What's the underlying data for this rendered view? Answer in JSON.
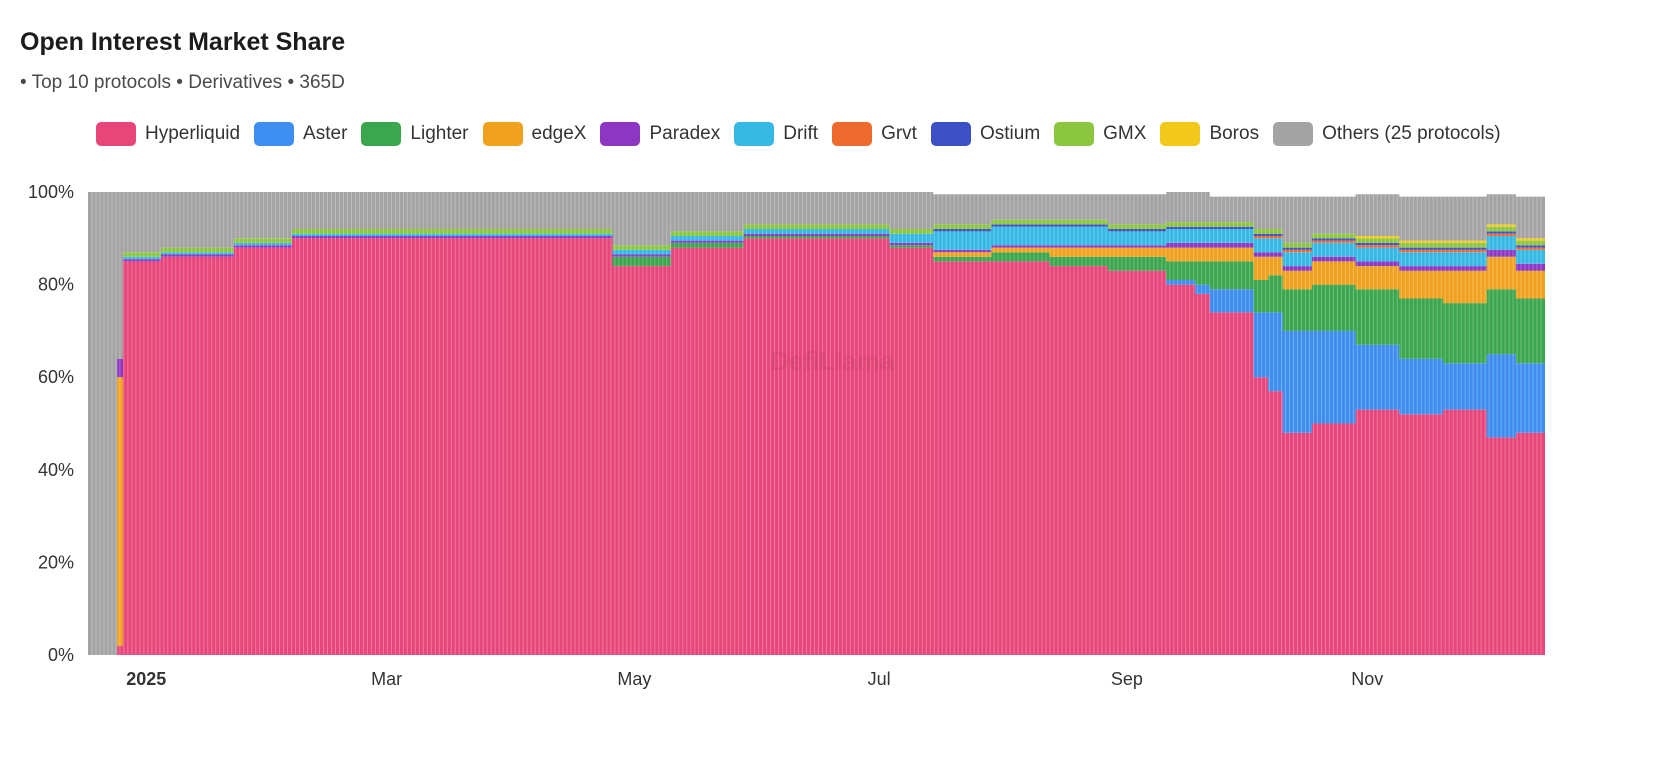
{
  "header": {
    "title": "Open Interest Market Share",
    "subtitle": "• Top 10 protocols • Derivatives • 365D"
  },
  "watermark": "DefiLlama",
  "chart_data": {
    "type": "area",
    "stacked_percent": true,
    "title": "Open Interest Market Share",
    "ylabel": "",
    "xlabel": "",
    "ylim": [
      0,
      100
    ],
    "y_ticks": [
      "0%",
      "20%",
      "40%",
      "60%",
      "80%",
      "100%"
    ],
    "x_tick_labels": [
      {
        "label": "2025",
        "t": 0.04,
        "bold": true
      },
      {
        "label": "Mar",
        "t": 0.205
      },
      {
        "label": "May",
        "t": 0.375
      },
      {
        "label": "Jul",
        "t": 0.543
      },
      {
        "label": "Sep",
        "t": 0.713
      },
      {
        "label": "Nov",
        "t": 0.878
      }
    ],
    "x_timeline": [
      0.0,
      0.02,
      0.024,
      0.05,
      0.1,
      0.14,
      0.2,
      0.3,
      0.35,
      0.36,
      0.38,
      0.4,
      0.45,
      0.52,
      0.55,
      0.58,
      0.62,
      0.66,
      0.7,
      0.74,
      0.76,
      0.77,
      0.8,
      0.81,
      0.82,
      0.84,
      0.87,
      0.9,
      0.93,
      0.96,
      0.98,
      1.0
    ],
    "series": [
      {
        "name": "Hyperliquid",
        "color": "#e8457a",
        "values": [
          0,
          2,
          85,
          86,
          88,
          90,
          90,
          90,
          90,
          84,
          84,
          88,
          90,
          90,
          88,
          85,
          85,
          84,
          83,
          80,
          78,
          74,
          60,
          57,
          48,
          50,
          53,
          52,
          53,
          47,
          48,
          50
        ]
      },
      {
        "name": "Aster",
        "color": "#3d8ef0",
        "values": [
          0,
          0,
          0,
          0,
          0,
          0,
          0,
          0,
          0,
          0,
          0,
          0,
          0,
          0,
          0,
          0,
          0,
          0,
          0,
          1,
          2,
          5,
          14,
          17,
          22,
          20,
          14,
          12,
          10,
          18,
          15,
          17
        ]
      },
      {
        "name": "Lighter",
        "color": "#3aa64d",
        "values": [
          0,
          0,
          0,
          0,
          0,
          0,
          0,
          0,
          0,
          2,
          2,
          1,
          0.5,
          0.5,
          0.5,
          1,
          2,
          2,
          3,
          4,
          5,
          6,
          7,
          8,
          9,
          10,
          12,
          13,
          13,
          14,
          14,
          13
        ]
      },
      {
        "name": "edgeX",
        "color": "#f0a21f",
        "values": [
          0,
          58,
          0,
          0,
          0,
          0,
          0,
          0,
          0,
          0,
          0,
          0,
          0,
          0,
          0,
          1,
          1,
          2,
          2,
          3,
          3,
          3,
          5,
          4,
          4,
          5,
          5,
          6,
          7,
          7,
          6,
          5
        ]
      },
      {
        "name": "Paradex",
        "color": "#8e36c4",
        "values": [
          0,
          4,
          0.5,
          0.5,
          0.5,
          0.5,
          0.5,
          0.5,
          0.5,
          0.5,
          0.5,
          0.5,
          0.5,
          0.5,
          0.5,
          0.5,
          0.5,
          0.5,
          0.5,
          1,
          1,
          1,
          1,
          1,
          1,
          1,
          1,
          1,
          1,
          1.5,
          1.5,
          1.5
        ]
      },
      {
        "name": "Drift",
        "color": "#35b8e4",
        "values": [
          0,
          0,
          0.5,
          0.5,
          0.5,
          0.5,
          0.5,
          0.5,
          0.5,
          1,
          1,
          1,
          1,
          1,
          2,
          4,
          4,
          4,
          3,
          3,
          3,
          3,
          3,
          3,
          3,
          3,
          3,
          3,
          3,
          3,
          3,
          3
        ]
      },
      {
        "name": "Grvt",
        "color": "#ed6a2c",
        "values": [
          0,
          0,
          0,
          0,
          0,
          0,
          0,
          0,
          0,
          0,
          0,
          0,
          0,
          0,
          0,
          0,
          0,
          0,
          0,
          0,
          0,
          0,
          0.5,
          0.5,
          0.5,
          0.5,
          0.5,
          0.5,
          0.5,
          0.5,
          0.5,
          0.5
        ]
      },
      {
        "name": "Ostium",
        "color": "#3d4fc4",
        "values": [
          0,
          0,
          0,
          0,
          0,
          0,
          0,
          0,
          0,
          0,
          0,
          0,
          0,
          0,
          0,
          0.5,
          0.5,
          0.5,
          0.5,
          0.5,
          0.5,
          0.5,
          0.5,
          0.5,
          0.5,
          0.5,
          0.5,
          0.5,
          0.5,
          0.5,
          0.5,
          0.5
        ]
      },
      {
        "name": "GMX",
        "color": "#8cc63f",
        "values": [
          0,
          0,
          1,
          1,
          1,
          1,
          1,
          1,
          1,
          1,
          1,
          1,
          1,
          1,
          1,
          1,
          1,
          1,
          1,
          1,
          1,
          1,
          1,
          1,
          1,
          1,
          1,
          1,
          1,
          1,
          1,
          1
        ]
      },
      {
        "name": "Boros",
        "color": "#f2c81b",
        "values": [
          0,
          0,
          0,
          0,
          0,
          0,
          0,
          0,
          0,
          0,
          0,
          0,
          0,
          0,
          0,
          0,
          0,
          0,
          0,
          0,
          0,
          0,
          0,
          0,
          0,
          0,
          0.5,
          0.5,
          0.5,
          0.5,
          0.5,
          1
        ]
      },
      {
        "name": "Others (25 protocols)",
        "color": "#a3a3a3",
        "values": [
          100,
          36,
          13,
          12,
          10,
          8,
          8,
          8,
          8,
          11.5,
          11.5,
          8.5,
          7,
          7,
          8,
          6.5,
          5.5,
          5.5,
          6.5,
          6.5,
          6.5,
          5.5,
          7,
          7,
          10,
          8,
          9,
          9.5,
          9.5,
          6.5,
          9,
          7.5
        ]
      }
    ]
  }
}
